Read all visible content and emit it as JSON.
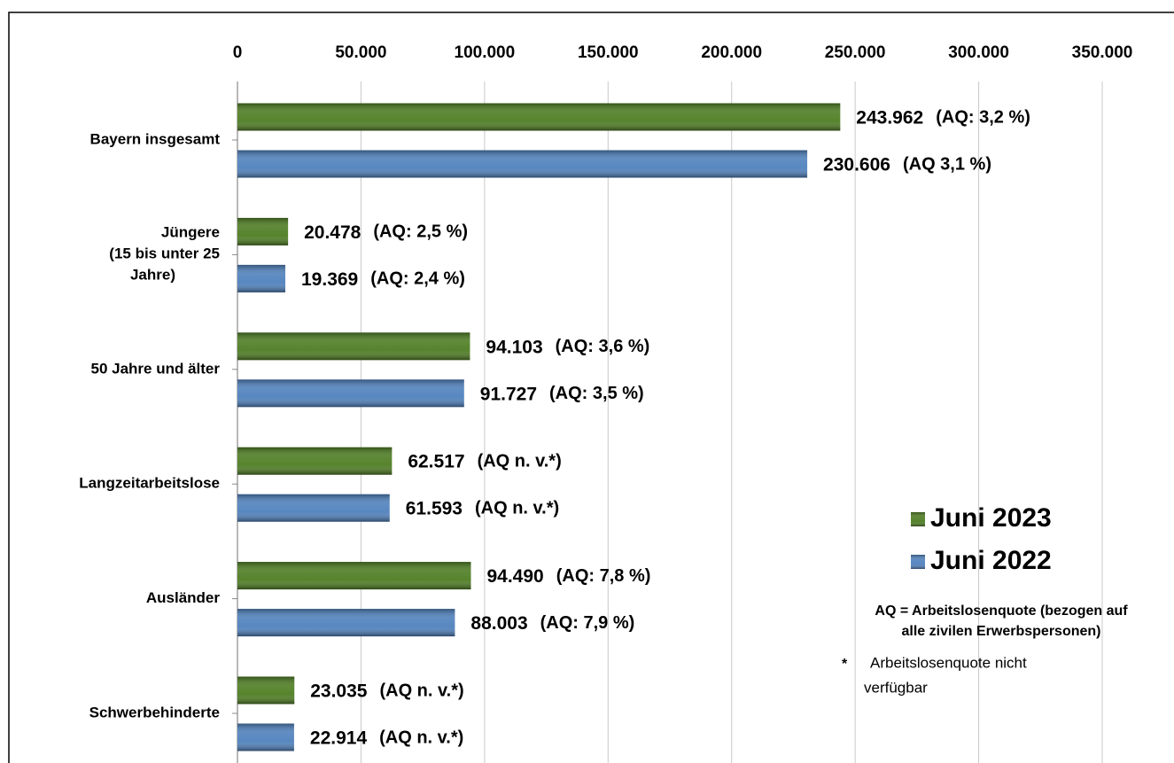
{
  "chart_data": {
    "type": "barh",
    "categories": [
      "Bayern insgesamt",
      "Jüngere\n(15 bis unter 25\nJahre)",
      "50 Jahre und älter",
      "Langzeitarbeitslose",
      "Ausländer",
      "Schwerbehinderte"
    ],
    "series": [
      {
        "name": "Juni 2023",
        "color": "#4e7d22",
        "values": [
          243962,
          20478,
          94103,
          62517,
          94490,
          23035
        ],
        "value_labels": [
          "243.962",
          "20.478",
          "94.103",
          "62.517",
          "94.490",
          "23.035"
        ],
        "aq_labels": [
          "(AQ: 3,2 %)",
          "(AQ: 2,5 %)",
          "(AQ: 3,6 %)",
          "(AQ n. v.*)",
          "(AQ: 7,8 %)",
          "(AQ n. v.*)"
        ]
      },
      {
        "name": "Juni 2022",
        "color": "#4f81bd",
        "values": [
          230606,
          19369,
          91727,
          61593,
          88003,
          22914
        ],
        "value_labels": [
          "230.606",
          "19.369",
          "91.727",
          "61.593",
          "88.003",
          "22.914"
        ],
        "aq_labels": [
          "(AQ 3,1 %)",
          "(AQ: 2,4 %)",
          "(AQ: 3,5 %)",
          "(AQ n. v.*)",
          "(AQ: 7,9 %)",
          "(AQ n. v.*)"
        ]
      }
    ],
    "xlim": [
      0,
      350000
    ],
    "xticks": [
      0,
      {
        "value": 50000,
        "label": "50.000"
      },
      {
        "value": 100000,
        "label": "100.000"
      },
      {
        "value": 150000,
        "label": "150.000"
      },
      {
        "value": 200000,
        "label": "200.000"
      },
      {
        "value": 250000,
        "label": "250.000"
      },
      {
        "value": 300000,
        "label": "300.000"
      },
      {
        "value": 350000,
        "label": "350.000"
      }
    ],
    "grid": true,
    "legend_position": "lower right",
    "footnote": [
      "AQ = Arbeitslosenquote (bezogen auf",
      "alle zivilen Erwerbspersonen)"
    ],
    "asterisk": "*",
    "asterisk_note": [
      "Arbeitslosenquote nicht",
      "verfügbar"
    ]
  }
}
